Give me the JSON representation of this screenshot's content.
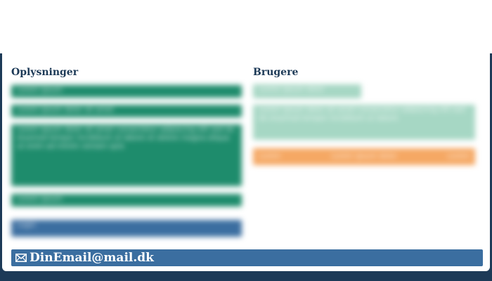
{
  "sections": {
    "info_title": "Oplysninger",
    "users_title": "Brugere"
  },
  "info_panel": {
    "row1": "Lorem ipsum",
    "row2": "Lorem ipsum dolor sit amet",
    "row3": "Lorem ipsum dolor sit amet consectetur adipiscing elit sed do eiusmod tempor incididunt ut labore et dolore magna aliqua ut enim ad minim veniam quis",
    "row4": "Lorem ipsum",
    "button": "Login"
  },
  "users_panel": {
    "row1": "Lorem ipsum dolor",
    "row2": "Lorem ipsum dolor sit amet consectetur adipiscing elit sed do eiusmod tempor incididunt ut labore",
    "orange_left": "Lorem",
    "orange_mid": "Lorem ipsum dolor",
    "orange_right": "Lorem"
  },
  "footer": {
    "email": "DinEmail@mail.dk",
    "icon": "envelope-icon"
  },
  "colors": {
    "navy": "#1d3a57",
    "green": "#1e8c6c",
    "lightgreen": "#a6d7c4",
    "orange": "#f5a864",
    "blue": "#3b6ea0"
  }
}
